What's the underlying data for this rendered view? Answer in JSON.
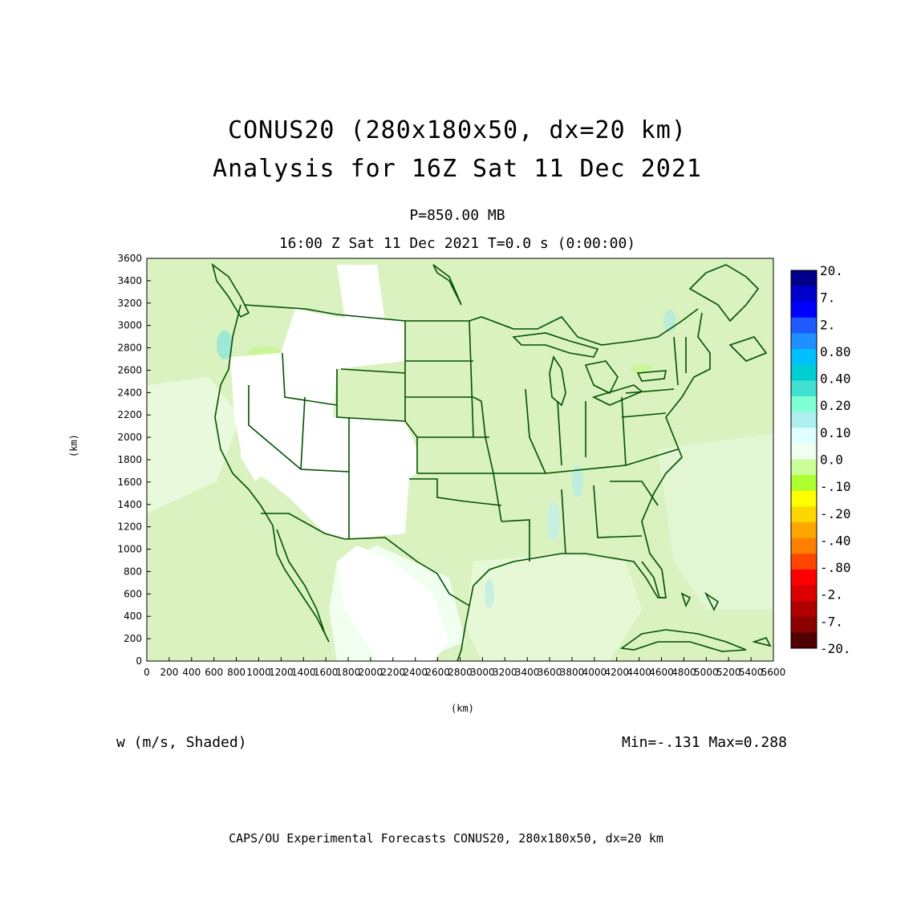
{
  "title": {
    "line1": "CONUS20 (280x180x50, dx=20 km)",
    "line2": "Analysis for 16Z Sat 11 Dec 2021"
  },
  "subtitle": {
    "level": "P=850.00 MB",
    "time": "16:00 Z Sat 11 Dec 2021   T=0.0 s (0:00:00)"
  },
  "axes": {
    "x_label": "(km)",
    "y_label": "(km)",
    "x_ticks": [
      0,
      200,
      400,
      600,
      800,
      1000,
      1200,
      1400,
      1600,
      1800,
      2000,
      2200,
      2400,
      2600,
      2800,
      3000,
      3200,
      3400,
      3600,
      3800,
      4000,
      4200,
      4400,
      4600,
      4800,
      5000,
      5200,
      5400,
      5600
    ],
    "y_ticks": [
      0,
      200,
      400,
      600,
      800,
      1000,
      1200,
      1400,
      1600,
      1800,
      2000,
      2200,
      2400,
      2600,
      2800,
      3000,
      3200,
      3400,
      3600
    ],
    "x_range": [
      0,
      5600
    ],
    "y_range": [
      0,
      3600
    ]
  },
  "variable": "w (m/s, Shaded)",
  "minmax": "Min=-.131 Max=0.288",
  "footer": "CAPS/OU Experimental Forecasts  CONUS20, 280x180x50, dx=20 km",
  "colorbar": {
    "labels": [
      "20.",
      "7.",
      "2.",
      "0.80",
      "0.40",
      "0.20",
      "0.10",
      "0.0",
      "-.10",
      "-.20",
      "-.40",
      "-.80",
      "-2.",
      "-7.",
      "-20."
    ],
    "colors": [
      "#00008b",
      "#0000cd",
      "#0000ff",
      "#1e5aff",
      "#1e90ff",
      "#00bfff",
      "#00ced1",
      "#40e0d0",
      "#7fffd4",
      "#afeeee",
      "#e0ffff",
      "#f0fff0",
      "#ccff99",
      "#adff2f",
      "#ffff00",
      "#ffd700",
      "#ffa500",
      "#ff7f00",
      "#ff4500",
      "#ff0000",
      "#dd0000",
      "#b00000",
      "#8b0000",
      "#500000"
    ]
  },
  "colors": {
    "background_field": "#d9f2bf",
    "terrain_mask": "#ffffff",
    "coast": "#005000"
  }
}
